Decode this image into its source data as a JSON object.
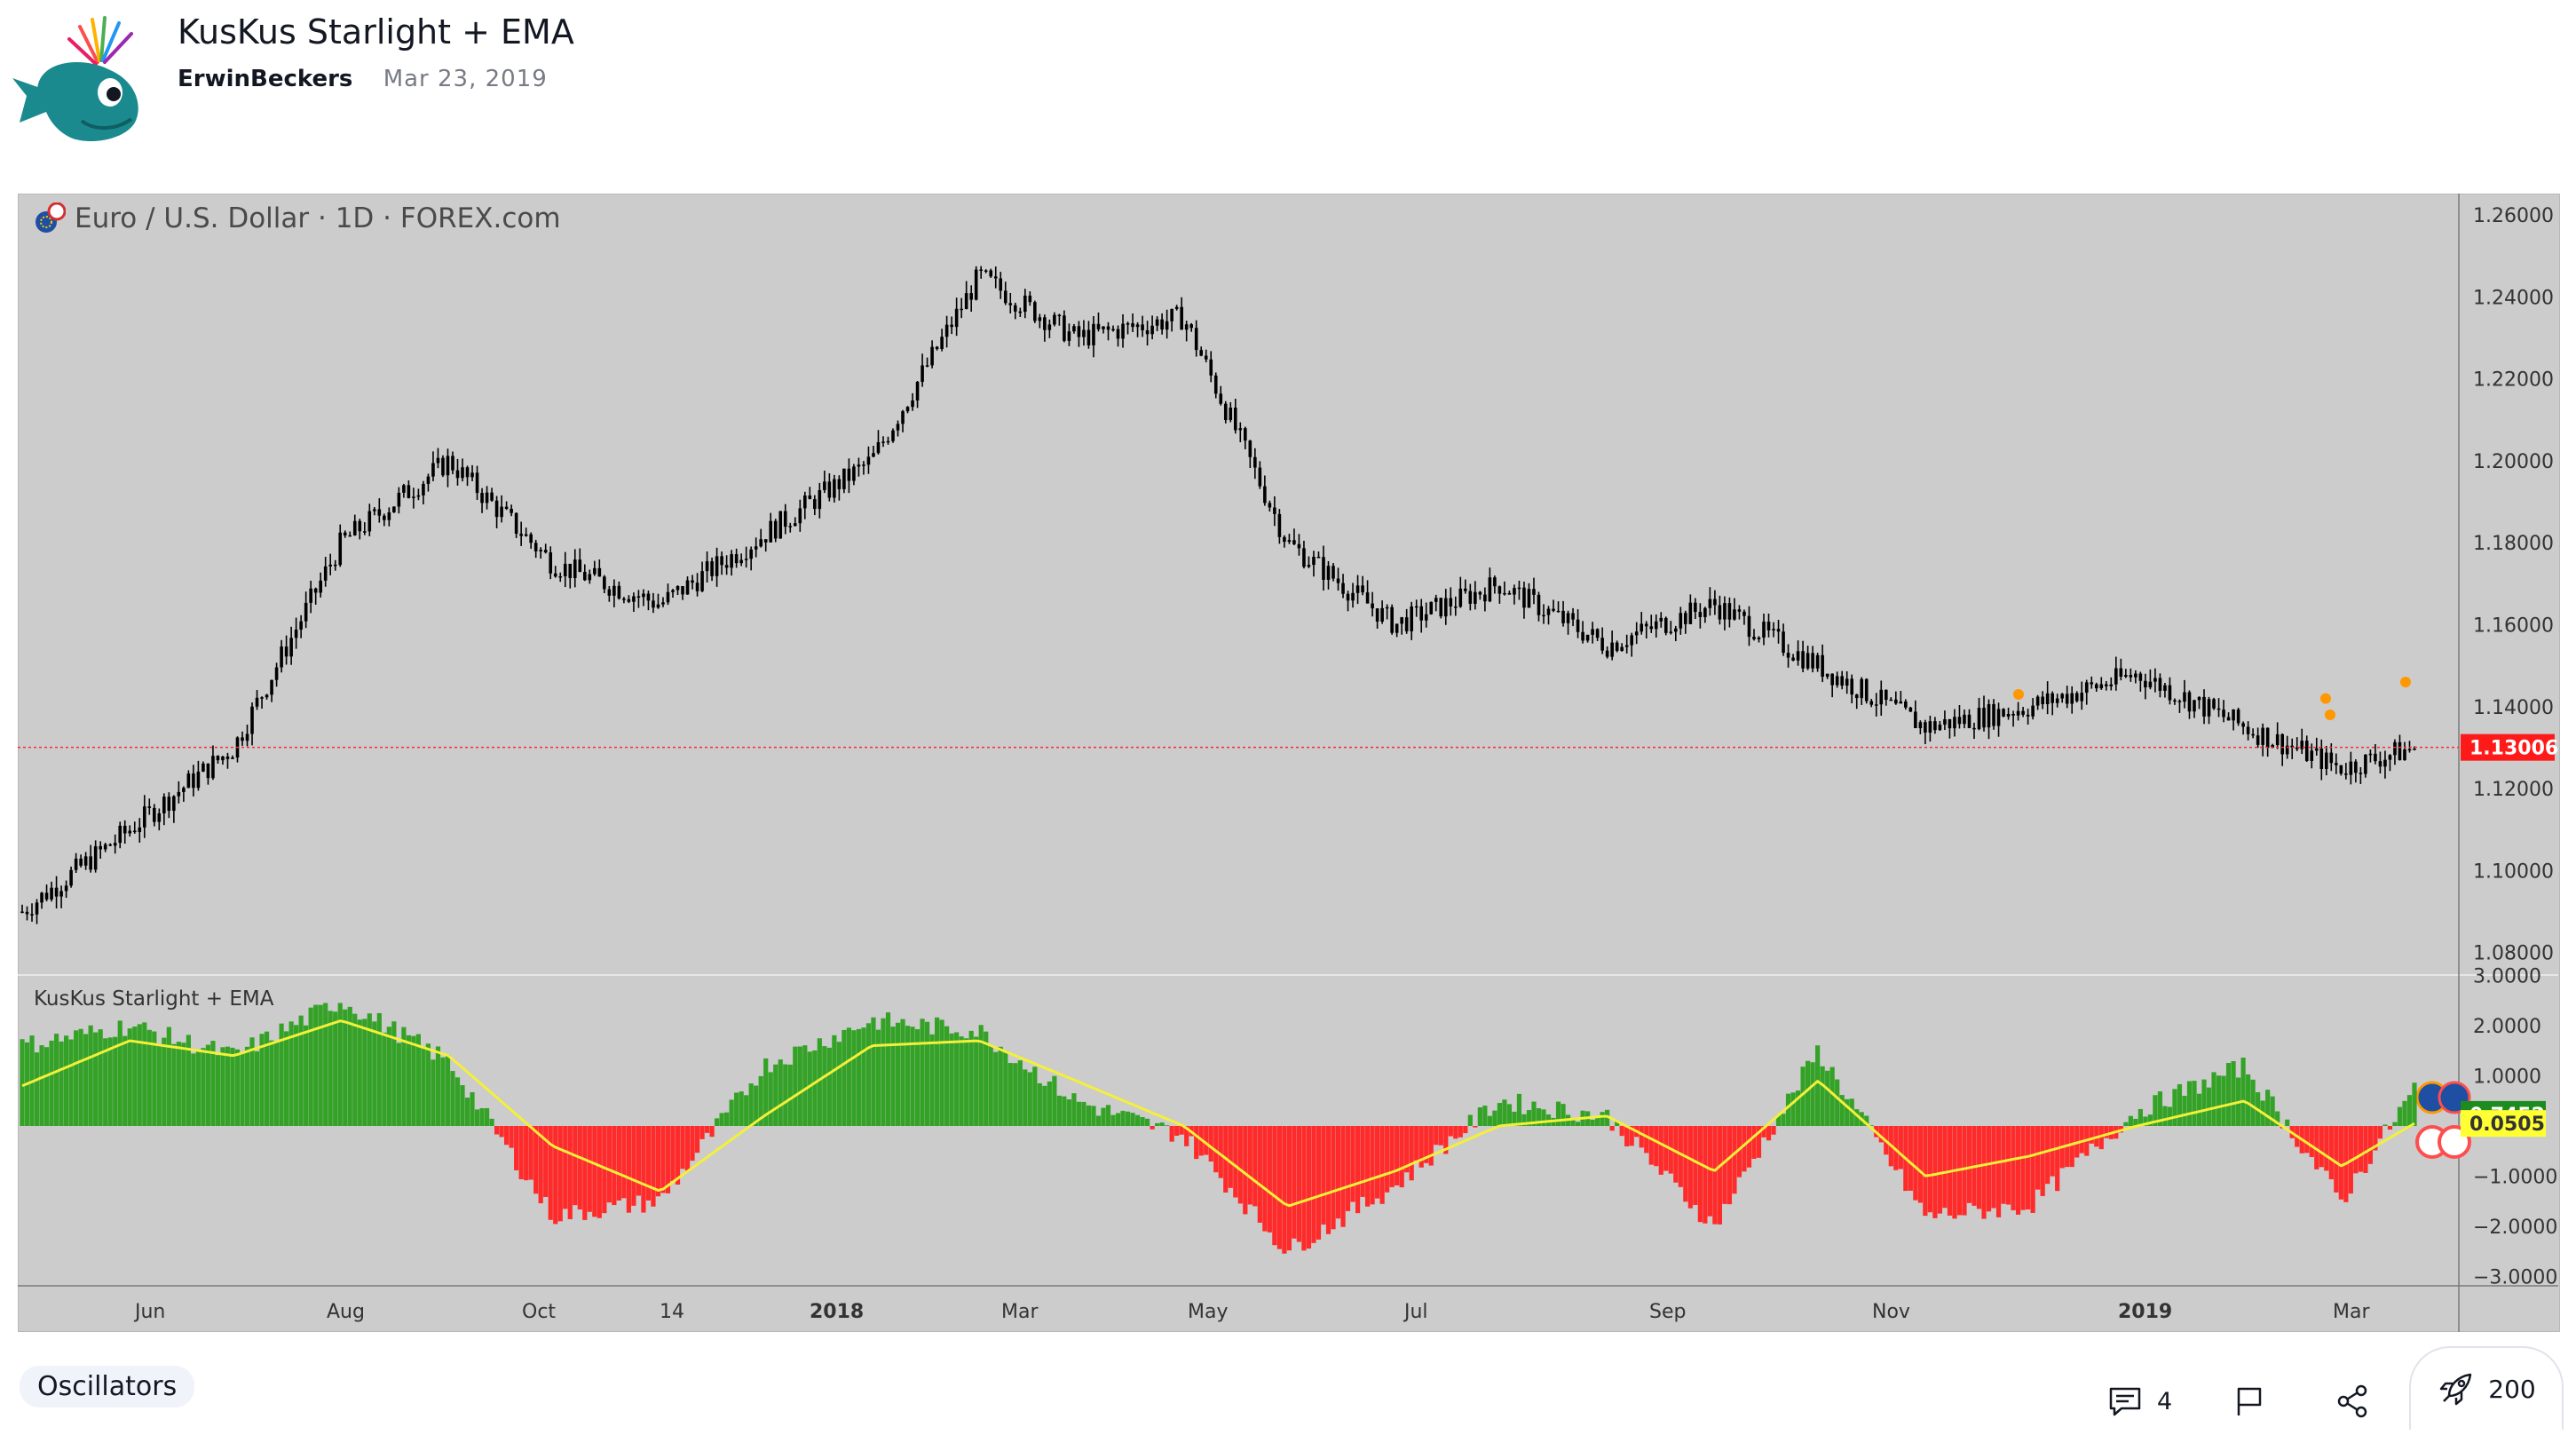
{
  "header": {
    "title": "KusKus Starlight + EMA",
    "author": "ErwinBeckers",
    "date": "Mar 23, 2019"
  },
  "chart": {
    "symbol_label": "Euro / U.S. Dollar · 1D · FOREX.com",
    "indicator_label": "KusKus Starlight + EMA",
    "last_price_label": "1.13006",
    "osc_value_label": "0.7452",
    "ema_value_label": "0.0505",
    "colors": {
      "background": "#cccccc",
      "candle": "#000000",
      "price_line": "#ff2a2a",
      "positive_bar": "#34a227",
      "negative_bar": "#ff2a2a",
      "ema_line": "#f4f03a",
      "osc_badge": "#1e8b1e",
      "ema_badge": "#ffff33",
      "price_badge": "#ff1a1a",
      "signal_dot": "#ff9800"
    },
    "price_axis_labels": [
      "1.26000",
      "1.24000",
      "1.22000",
      "1.20000",
      "1.18000",
      "1.16000",
      "1.14000",
      "1.12000",
      "1.10000",
      "1.08000"
    ],
    "osc_axis_labels": [
      "3.0000",
      "2.0000",
      "1.0000",
      "-1.0000",
      "-2.0000",
      "-3.0000"
    ],
    "time_axis_labels": [
      "Jun",
      "Aug",
      "Oct",
      "14",
      "2018",
      "Mar",
      "May",
      "Jul",
      "Sep",
      "Nov",
      "2019",
      "Mar"
    ]
  },
  "chart_data": [
    {
      "type": "candlestick",
      "title": "Euro / U.S. Dollar · 1D · FOREX.com",
      "x": [
        "2017-05-01",
        "2017-06-01",
        "2017-07-01",
        "2017-08-01",
        "2017-09-01",
        "2017-10-01",
        "2017-11-01",
        "2017-12-01",
        "2018-01-01",
        "2018-02-01",
        "2018-03-01",
        "2018-04-01",
        "2018-05-01",
        "2018-06-01",
        "2018-07-01",
        "2018-08-01",
        "2018-09-01",
        "2018-10-01",
        "2018-11-01",
        "2018-12-01",
        "2019-01-01",
        "2019-02-01",
        "2019-03-01",
        "2019-03-22"
      ],
      "close": [
        1.09,
        1.11,
        1.13,
        1.18,
        1.2,
        1.175,
        1.165,
        1.182,
        1.2,
        1.245,
        1.23,
        1.235,
        1.18,
        1.16,
        1.17,
        1.155,
        1.165,
        1.15,
        1.135,
        1.14,
        1.148,
        1.135,
        1.125,
        1.13
      ],
      "ylim": [
        1.07,
        1.26
      ],
      "last_price": 1.13006
    },
    {
      "type": "bar",
      "title": "KusKus Starlight + EMA",
      "x": [
        "2017-05-01",
        "2017-06-01",
        "2017-07-01",
        "2017-08-01",
        "2017-09-01",
        "2017-10-01",
        "2017-11-01",
        "2017-12-01",
        "2018-01-01",
        "2018-02-01",
        "2018-03-01",
        "2018-04-01",
        "2018-05-01",
        "2018-06-01",
        "2018-07-01",
        "2018-08-01",
        "2018-09-01",
        "2018-10-01",
        "2018-11-01",
        "2018-12-01",
        "2019-01-01",
        "2019-02-01",
        "2019-03-01",
        "2019-03-22"
      ],
      "series": [
        {
          "name": "KusKus Starlight",
          "values": [
            1.6,
            2.0,
            1.4,
            2.5,
            1.3,
            -1.8,
            -1.5,
            1.2,
            2.1,
            1.9,
            0.5,
            -0.2,
            -2.5,
            -1.2,
            0.5,
            0.2,
            -2.0,
            1.5,
            -1.8,
            -1.6,
            0.3,
            1.2,
            -1.5,
            0.7452
          ]
        },
        {
          "name": "EMA",
          "values": [
            0.8,
            1.7,
            1.4,
            2.1,
            1.4,
            -0.4,
            -1.3,
            0.2,
            1.6,
            1.7,
            0.9,
            0.0,
            -1.6,
            -0.9,
            0.0,
            0.2,
            -0.9,
            0.9,
            -1.0,
            -0.6,
            0.0,
            0.5,
            -0.8,
            0.0505
          ]
        }
      ],
      "ylim": [
        -3.0,
        3.0
      ]
    }
  ]
}
